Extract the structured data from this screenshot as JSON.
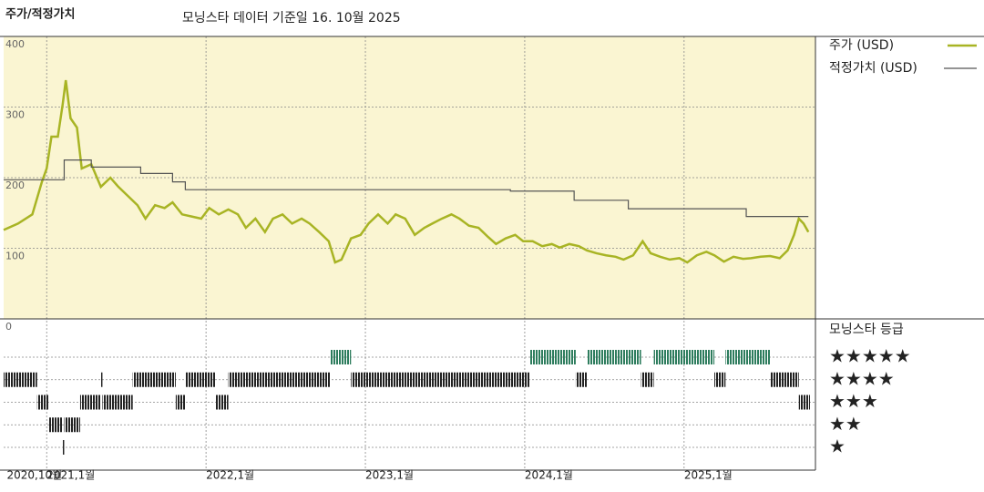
{
  "chart_data": {
    "type": "line",
    "title": "주가/적정가치",
    "subtitle": "모닝스타 데이터 기준일 16. 10월 2025",
    "xlim": [
      2020.73,
      2025.79
    ],
    "xticks": [
      {
        "value": 2020.75,
        "label": "2020,10월"
      },
      {
        "value": 2021,
        "label": "2021,1월"
      },
      {
        "value": 2022,
        "label": "2022,1월"
      },
      {
        "value": 2023,
        "label": "2023,1월"
      },
      {
        "value": 2024,
        "label": "2024,1월"
      },
      {
        "value": 2025,
        "label": "2025,1월"
      }
    ],
    "ylim": [
      0,
      400
    ],
    "yticks": [
      0,
      100,
      200,
      300,
      400
    ],
    "grid": true,
    "legend": "right",
    "series": [
      {
        "name": "주가 (USD)",
        "color": "#a8b424",
        "x": [
          2020.73,
          2020.82,
          2020.91,
          2020.97,
          2021.0,
          2021.03,
          2021.07,
          2021.1,
          2021.12,
          2021.15,
          2021.19,
          2021.22,
          2021.28,
          2021.34,
          2021.4,
          2021.45,
          2021.51,
          2021.57,
          2021.62,
          2021.68,
          2021.74,
          2021.79,
          2021.85,
          2021.91,
          2021.97,
          2022.02,
          2022.08,
          2022.14,
          2022.2,
          2022.25,
          2022.31,
          2022.37,
          2022.42,
          2022.48,
          2022.54,
          2022.6,
          2022.65,
          2022.71,
          2022.77,
          2022.81,
          2022.85,
          2022.91,
          2022.97,
          2023.02,
          2023.08,
          2023.14,
          2023.19,
          2023.25,
          2023.31,
          2023.37,
          2023.42,
          2023.48,
          2023.54,
          2023.59,
          2023.65,
          2023.71,
          2023.77,
          2023.82,
          2023.88,
          2023.94,
          2023.99,
          2024.05,
          2024.11,
          2024.17,
          2024.22,
          2024.28,
          2024.34,
          2024.39,
          2024.45,
          2024.51,
          2024.57,
          2024.62,
          2024.68,
          2024.74,
          2024.79,
          2024.85,
          2024.91,
          2024.97,
          2025.02,
          2025.08,
          2025.14,
          2025.19,
          2025.25,
          2025.31,
          2025.37,
          2025.42,
          2025.48,
          2025.54,
          2025.6,
          2025.65,
          2025.69,
          2025.72,
          2025.75,
          2025.78
        ],
        "values": [
          126,
          135,
          148,
          194,
          213,
          258,
          258,
          303,
          338,
          284,
          271,
          213,
          219,
          187,
          200,
          187,
          174,
          161,
          142,
          161,
          157,
          165,
          148,
          145,
          142,
          157,
          148,
          155,
          148,
          129,
          142,
          123,
          142,
          148,
          135,
          142,
          135,
          123,
          110,
          80,
          84,
          114,
          119,
          135,
          148,
          135,
          148,
          142,
          119,
          129,
          135,
          142,
          148,
          142,
          132,
          129,
          116,
          106,
          114,
          119,
          110,
          110,
          103,
          106,
          101,
          106,
          103,
          97,
          93,
          90,
          88,
          84,
          90,
          110,
          93,
          88,
          84,
          86,
          80,
          90,
          95,
          90,
          81,
          88,
          85,
          86,
          88,
          89,
          86,
          97,
          119,
          142,
          135,
          123
        ]
      },
      {
        "name": "적정가치 (USD)",
        "color": "#555555",
        "drawstyle": "steps-post",
        "x": [
          2020.73,
          2021.11,
          2021.28,
          2021.59,
          2021.79,
          2021.87,
          2023.91,
          2024.31,
          2024.65,
          2025.39,
          2025.78
        ],
        "values": [
          197,
          225,
          215,
          206,
          194,
          183,
          181,
          168,
          156,
          145,
          145
        ]
      }
    ],
    "rating": {
      "title": "모닝스타 등급",
      "labels": [
        {
          "value": 5,
          "label": "★★★★★"
        },
        {
          "value": 4,
          "label": "★★★★"
        },
        {
          "value": 3,
          "label": "★★★"
        },
        {
          "value": 2,
          "label": "★★"
        },
        {
          "value": 1,
          "label": "★"
        }
      ],
      "colors": {
        "high": "#2e7d5e",
        "normal": "#222222"
      },
      "x": [
        2020.73,
        2020.94,
        2021.01,
        2021.1,
        2021.11,
        2021.21,
        2021.34,
        2021.35,
        2021.54,
        2021.81,
        2021.87,
        2022.06,
        2022.14,
        2022.78,
        2022.91,
        2024.03,
        2024.32,
        2024.39,
        2024.73,
        2024.81,
        2025.19,
        2025.26,
        2025.54,
        2025.72
      ],
      "values": [
        4,
        3,
        2,
        1,
        2,
        3,
        4,
        3,
        4,
        3,
        4,
        3,
        4,
        5,
        4,
        5,
        4,
        5,
        4,
        5,
        4,
        5,
        4,
        3
      ]
    }
  }
}
